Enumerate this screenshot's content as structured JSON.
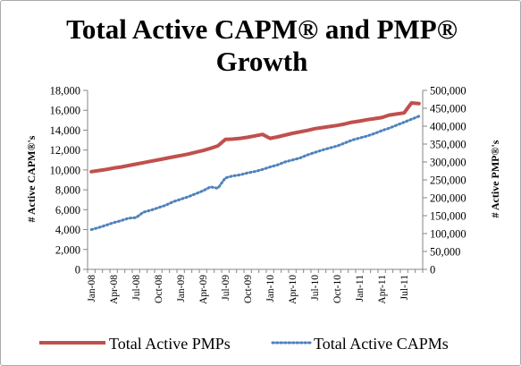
{
  "chart_data": {
    "type": "line",
    "title_lines": [
      "Total Active CAPM® and PMP®",
      "Growth"
    ],
    "ylabel_left": "# Active CAPM®'s",
    "ylabel_right": "# Active PMP®'s",
    "xlabel": "",
    "left_axis": {
      "min": 0,
      "max": 18000,
      "ticks": [
        0,
        2000,
        4000,
        6000,
        8000,
        10000,
        12000,
        14000,
        16000,
        18000
      ],
      "tick_labels": [
        "0",
        "2,000",
        "4,000",
        "6,000",
        "8,000",
        "10,000",
        "12,000",
        "14,000",
        "16,000",
        "18,000"
      ]
    },
    "right_axis": {
      "min": 0,
      "max": 500000,
      "ticks": [
        0,
        50000,
        100000,
        150000,
        200000,
        250000,
        300000,
        350000,
        400000,
        450000,
        500000
      ],
      "tick_labels": [
        "0",
        "50,000",
        "100,000",
        "150,000",
        "200,000",
        "250,000",
        "300,000",
        "350,000",
        "400,000",
        "450,000",
        "500,000"
      ]
    },
    "x": [
      "Jan-08",
      "Feb-08",
      "Mar-08",
      "Apr-08",
      "May-08",
      "Jun-08",
      "Jul-08",
      "Aug-08",
      "Sep-08",
      "Oct-08",
      "Nov-08",
      "Dec-08",
      "Jan-09",
      "Feb-09",
      "Mar-09",
      "Apr-09",
      "May-09",
      "Jun-09",
      "Jul-09",
      "Aug-09",
      "Sep-09",
      "Oct-09",
      "Nov-09",
      "Dec-09",
      "Jan-10",
      "Feb-10",
      "Mar-10",
      "Apr-10",
      "May-10",
      "Jun-10",
      "Jul-10",
      "Aug-10",
      "Sep-10",
      "Oct-10",
      "Nov-10",
      "Dec-10",
      "Jan-11",
      "Feb-11",
      "Mar-11",
      "Apr-11",
      "May-11",
      "Jun-11",
      "Jul-11",
      "Aug-11",
      "Sep-11"
    ],
    "x_tick_labels": [
      "Jan-08",
      "Apr-08",
      "Jul-08",
      "Oct-08",
      "Jan-09",
      "Apr-09",
      "Jul-09",
      "Oct-09",
      "Jan-10",
      "Apr-10",
      "Jul-10",
      "Oct-10",
      "Jan-11",
      "Apr-11",
      "Jul-11"
    ],
    "series": [
      {
        "name": "Total Active PMPs",
        "axis": "right",
        "color": "#c0504d",
        "style": "solid",
        "values": [
          273000,
          276000,
          279000,
          283000,
          286000,
          290000,
          294000,
          298000,
          302000,
          306000,
          310000,
          314000,
          318000,
          322000,
          327000,
          332000,
          338000,
          345000,
          363000,
          364000,
          366000,
          369000,
          373000,
          377000,
          366000,
          370000,
          375000,
          380000,
          384000,
          388000,
          393000,
          396000,
          399000,
          402000,
          406000,
          411000,
          414000,
          418000,
          421000,
          424000,
          431000,
          434000,
          437000,
          465000,
          463000
        ]
      },
      {
        "name": "Total Active CAPMs",
        "axis": "left",
        "color": "#4f81bd",
        "style": "dotted",
        "values": [
          4000,
          4200,
          4450,
          4700,
          4900,
          5150,
          5200,
          5750,
          5950,
          6200,
          6450,
          6800,
          7050,
          7300,
          7600,
          7900,
          8300,
          8150,
          9200,
          9400,
          9500,
          9700,
          9850,
          10050,
          10300,
          10500,
          10800,
          11000,
          11200,
          11500,
          11750,
          12000,
          12200,
          12400,
          12700,
          13000,
          13200,
          13400,
          13650,
          13950,
          14200,
          14500,
          14800,
          15100,
          15400
        ]
      }
    ],
    "legend": {
      "position": "bottom",
      "entries": [
        "Total Active PMPs",
        "Total Active CAPMs"
      ]
    },
    "grid": false
  }
}
